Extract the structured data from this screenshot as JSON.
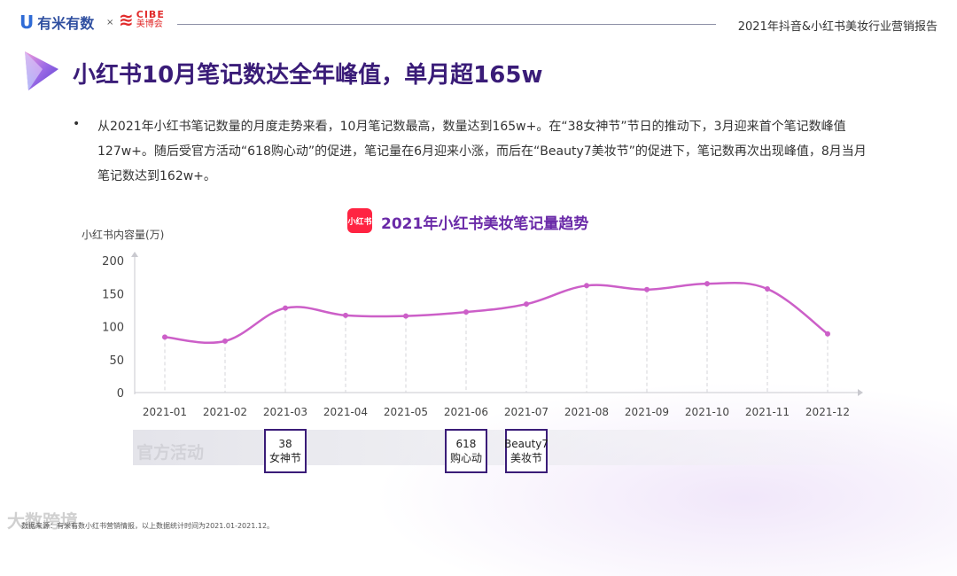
{
  "header": {
    "logo_youmi": "有米有数",
    "logo_separator": "×",
    "logo_cibe_en": "CIBE",
    "logo_cibe_cn": "美博会",
    "report_title": "2021年抖音&小红书美妆行业营销报告"
  },
  "page_title": "小红书10月笔记数达全年峰值，单月超165w",
  "bullet": {
    "marker": "•",
    "text": "从2021年小红书笔记数量的月度走势来看，10月笔记数最高，数量达到165w+。在“38女神节”节日的推动下，3月迎来首个笔记数峰值127w+。随后受官方活动“618购心动”的促进，笔记量在6月迎来小涨，而后在“Beauty7美妆节”的促进下，笔记数再次出现峰值，8月当月笔记数达到162w+。"
  },
  "chart_badge": "小红书",
  "events": {
    "band_label": "官方活动",
    "items": [
      {
        "line1": "38",
        "line2": "女神节",
        "month": "2021-03"
      },
      {
        "line1": "618",
        "line2": "购心动",
        "month": "2021-06"
      },
      {
        "line1": "Beauty7",
        "line2": "美妆节",
        "month": "2021-07"
      }
    ]
  },
  "footnote": "数据来源：有米有数小红书营销情报，以上数据统计时间为2021.01-2021.12。",
  "watermark": "大数跨境",
  "colors": {
    "accent": "#3a1c78",
    "line": "#cc5fc8",
    "badge": "#ff2442"
  },
  "chart_data": {
    "type": "line",
    "title": "2021年小红书美妆笔记量趋势",
    "xlabel": "",
    "ylabel": "小红书内容量(万)",
    "categories": [
      "2021-01",
      "2021-02",
      "2021-03",
      "2021-04",
      "2021-05",
      "2021-06",
      "2021-07",
      "2021-08",
      "2021-09",
      "2021-10",
      "2021-11",
      "2021-12"
    ],
    "series": [
      {
        "name": "小红书内容量",
        "values": [
          84,
          78,
          128,
          117,
          116,
          122,
          134,
          162,
          156,
          165,
          157,
          89
        ]
      }
    ],
    "yticks": [
      0,
      50,
      100,
      150,
      200
    ],
    "ylim": [
      0,
      200
    ],
    "grid": false,
    "legend": "none"
  }
}
